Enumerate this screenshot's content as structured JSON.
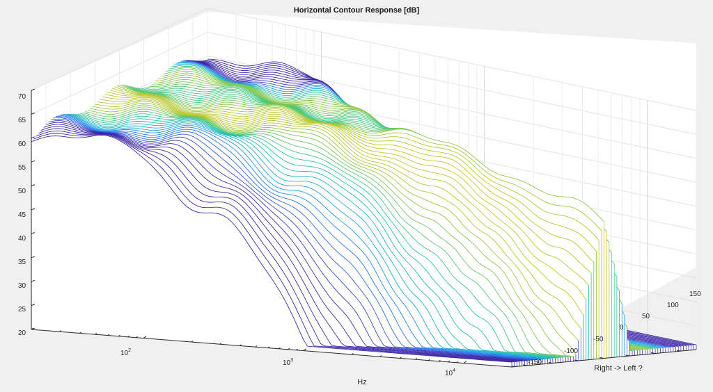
{
  "chart_data": {
    "type": "waterfall-3d",
    "title": "Horizontal Contour Response [dB]",
    "xlabel": "Hz",
    "ylabel": "Right -> Left ?",
    "zlabel": "",
    "x_scale": "log",
    "xlim": [
      20,
      20000
    ],
    "x_ticks": [
      {
        "base": "10",
        "exp": "2",
        "value": 100
      },
      {
        "base": "10",
        "exp": "3",
        "value": 1000
      },
      {
        "base": "10",
        "exp": "4",
        "value": 10000
      }
    ],
    "ylim": [
      -180,
      180
    ],
    "y_ticks": [
      "-150",
      "-100",
      "-50",
      "0",
      "50",
      "100",
      "150"
    ],
    "zlim": [
      20,
      70
    ],
    "z_ticks": [
      "20",
      "25",
      "30",
      "35",
      "40",
      "45",
      "50",
      "55",
      "60",
      "65",
      "70"
    ],
    "grid": true,
    "colormap": "parula",
    "angle_step_deg": 5,
    "series_description": "one frequency-response curve per horizontal angle; on-axis (0) ~60 dB, off-axis curves roll off at high frequency"
  }
}
